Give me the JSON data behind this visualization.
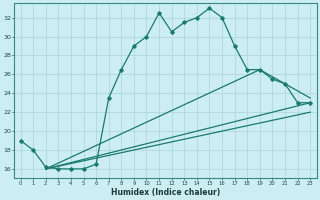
{
  "xlabel": "Humidex (Indice chaleur)",
  "bg_color": "#cceef2",
  "grid_color": "#b0d8dc",
  "line_color": "#1a7a6e",
  "xlim": [
    -0.5,
    23.5
  ],
  "ylim": [
    15.0,
    33.5
  ],
  "yticks": [
    16,
    18,
    20,
    22,
    24,
    26,
    28,
    30,
    32
  ],
  "xticks": [
    0,
    1,
    2,
    3,
    4,
    5,
    6,
    7,
    8,
    9,
    10,
    11,
    12,
    13,
    14,
    15,
    16,
    17,
    18,
    19,
    20,
    21,
    22,
    23
  ],
  "series1_x": [
    0,
    1,
    2,
    3,
    4,
    5,
    6,
    7,
    8,
    9,
    10,
    11,
    12,
    13,
    14,
    15,
    16,
    17,
    18,
    19,
    20,
    21,
    22,
    23
  ],
  "series1_y": [
    19.0,
    18.0,
    16.2,
    16.0,
    16.0,
    16.0,
    16.5,
    23.5,
    26.5,
    29.0,
    30.0,
    32.5,
    30.5,
    31.5,
    32.0,
    33.0,
    32.0,
    29.0,
    26.5,
    26.5,
    25.5,
    25.0,
    23.0,
    23.0
  ],
  "series2_x": [
    2,
    23
  ],
  "series2_y": [
    16.0,
    23.0
  ],
  "series3_x": [
    2,
    23
  ],
  "series3_y": [
    16.0,
    22.0
  ],
  "series4_x": [
    2,
    19,
    21,
    23
  ],
  "series4_y": [
    16.0,
    26.5,
    25.0,
    23.5
  ]
}
